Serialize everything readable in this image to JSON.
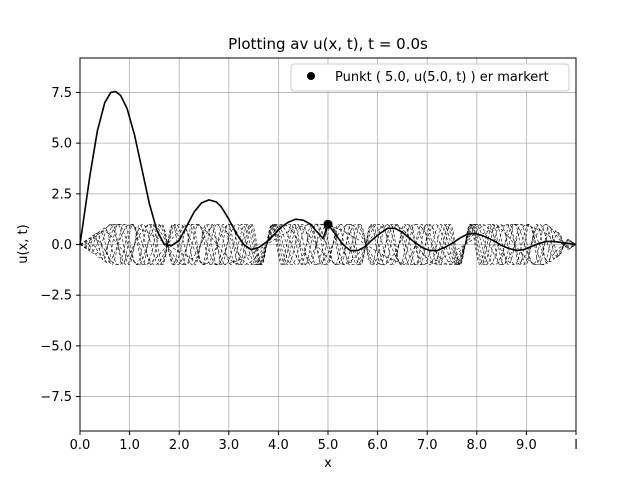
{
  "chart_data": {
    "type": "line",
    "title": "Plotting av u(x, t), t = 0.0s",
    "xlabel": "x",
    "ylabel": "u(x, t)",
    "xlim": [
      0,
      10
    ],
    "ylim": [
      -9.2,
      9.2
    ],
    "grid": true,
    "xticks": [
      {
        "value": 0,
        "label": "0.0"
      },
      {
        "value": 1,
        "label": "1.0"
      },
      {
        "value": 2,
        "label": "2.0"
      },
      {
        "value": 3,
        "label": "3.0"
      },
      {
        "value": 4,
        "label": "4.0"
      },
      {
        "value": 5,
        "label": "5.0"
      },
      {
        "value": 6,
        "label": "6.0"
      },
      {
        "value": 7,
        "label": "7.0"
      },
      {
        "value": 8,
        "label": "8.0"
      },
      {
        "value": 9,
        "label": "9.0"
      },
      {
        "value": 10,
        "label": "l"
      }
    ],
    "yticks": [
      {
        "value": 7.5,
        "label": "7.5"
      },
      {
        "value": 5.0,
        "label": "5.0"
      },
      {
        "value": 2.5,
        "label": "2.5"
      },
      {
        "value": 0.0,
        "label": "0.0"
      },
      {
        "value": -2.5,
        "label": "−2.5"
      },
      {
        "value": -5.0,
        "label": "−5.0"
      },
      {
        "value": -7.5,
        "label": "−7.5"
      }
    ],
    "legend": {
      "placement": "upper-right",
      "entries": [
        {
          "marker": "dot",
          "label": "Punkt ( 5.0, u(5.0, t) ) er markert"
        }
      ]
    },
    "main_series": {
      "x": [
        0,
        0.2,
        0.35,
        0.5,
        0.62,
        0.72,
        0.82,
        0.95,
        1.1,
        1.25,
        1.4,
        1.55,
        1.7,
        1.85,
        2.0,
        2.15,
        2.3,
        2.45,
        2.6,
        2.75,
        2.85,
        3.0,
        3.15,
        3.3,
        3.45,
        3.6,
        3.75,
        3.9,
        4.05,
        4.2,
        4.35,
        4.5,
        4.65,
        4.75,
        4.9,
        5.0,
        5.15,
        5.3,
        5.45,
        5.6,
        5.75,
        5.9,
        6.05,
        6.2,
        6.35,
        6.5,
        6.6,
        6.75,
        6.9,
        7.05,
        7.2,
        7.35,
        7.5,
        7.65,
        7.8,
        7.95,
        8.1,
        8.25,
        8.4,
        8.5,
        8.65,
        8.8,
        8.95,
        9.1,
        9.25,
        9.4,
        9.55,
        9.7,
        9.85,
        10.0
      ],
      "y": [
        0,
        3.4,
        5.6,
        7.0,
        7.5,
        7.55,
        7.35,
        6.7,
        5.4,
        3.7,
        2.0,
        0.7,
        0.0,
        -0.05,
        0.2,
        0.9,
        1.6,
        2.05,
        2.2,
        2.1,
        1.85,
        1.25,
        0.55,
        0.0,
        -0.25,
        -0.15,
        0.1,
        0.45,
        0.85,
        1.1,
        1.25,
        1.2,
        1.0,
        0.7,
        0.3,
        1.0,
        0.5,
        0.0,
        -0.3,
        -0.3,
        -0.1,
        0.25,
        0.55,
        0.8,
        0.8,
        0.6,
        0.4,
        0.1,
        -0.15,
        -0.3,
        -0.3,
        -0.15,
        0.05,
        0.3,
        0.5,
        0.55,
        0.45,
        0.3,
        0.1,
        -0.05,
        -0.2,
        -0.3,
        -0.25,
        -0.1,
        0.05,
        0.15,
        0.15,
        0.1,
        0.05,
        0.0
      ]
    },
    "marked_point": {
      "x": 5.0,
      "y": 1.0
    },
    "basis_modes": {
      "description_terms": "dashed sinusoidal modes",
      "amplitude": 1.0,
      "count": 10
    }
  }
}
